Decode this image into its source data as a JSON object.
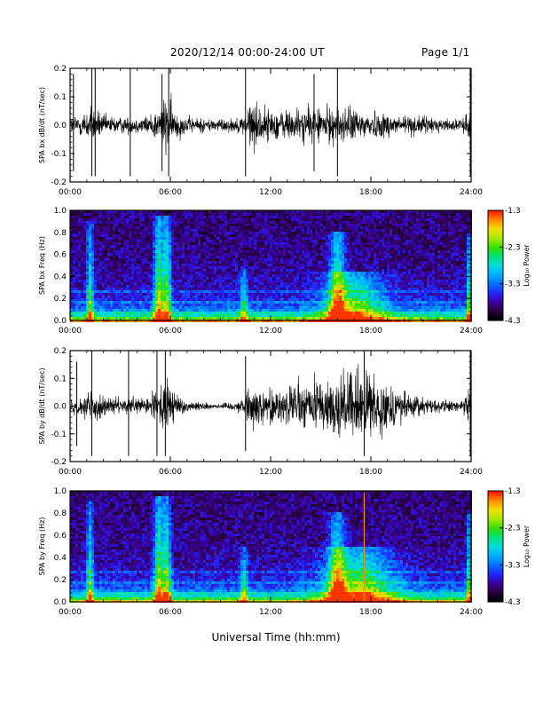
{
  "header": {
    "title": "2020/12/14  00:00-24:00 UT",
    "page": "Page 1/1"
  },
  "xaxis_title": "Universal Time (hh:mm)",
  "colors": {
    "background": "#ffffff",
    "trace": "#000000",
    "colormap": [
      "#000000",
      "#2a0040",
      "#3a00a8",
      "#1f2bff",
      "#0077ff",
      "#00b0ff",
      "#00dede",
      "#00e07a",
      "#35e000",
      "#a8e800",
      "#f0e000",
      "#ff8c00",
      "#ff1a00"
    ]
  },
  "chart_data": [
    {
      "id": "bx-waveform",
      "type": "line",
      "ylabel": "SPA bx dB/dt (nT/sec)",
      "x_ticks": [
        "00:00",
        "06:00",
        "12:00",
        "18:00",
        "24:00"
      ],
      "xlim": [
        0,
        24
      ],
      "ylim": [
        -0.2,
        0.2
      ],
      "y_ticks": [
        "0.2",
        "0.1",
        "0.0",
        "-0.1",
        "-0.2"
      ],
      "y_tick_values": [
        0.2,
        0.1,
        0.0,
        -0.1,
        -0.2
      ],
      "envelope": {
        "x": [
          0,
          0.5,
          1.0,
          1.3,
          2.0,
          3.0,
          4.5,
          5.4,
          5.8,
          6.2,
          7.0,
          8.5,
          9.5,
          10.3,
          10.8,
          12.0,
          13.5,
          15.0,
          16.5,
          17.5,
          18.5,
          19.5,
          20.5,
          21.5,
          22.5,
          23.5,
          24.0
        ],
        "amp": [
          0.05,
          0.07,
          0.09,
          0.12,
          0.06,
          0.05,
          0.05,
          0.11,
          0.19,
          0.1,
          0.05,
          0.04,
          0.04,
          0.05,
          0.15,
          0.09,
          0.1,
          0.11,
          0.11,
          0.09,
          0.08,
          0.07,
          0.06,
          0.05,
          0.04,
          0.03,
          0.12
        ]
      },
      "spikes": [
        {
          "x": 0.2,
          "amp": 0.18
        },
        {
          "x": 1.3,
          "amp": 0.2
        },
        {
          "x": 1.5,
          "amp": 0.2
        },
        {
          "x": 3.6,
          "amp": 0.2
        },
        {
          "x": 5.5,
          "amp": 0.18
        },
        {
          "x": 5.9,
          "amp": 0.2
        },
        {
          "x": 10.5,
          "amp": 0.2
        },
        {
          "x": 14.6,
          "amp": 0.18
        },
        {
          "x": 16.0,
          "amp": 0.2
        },
        {
          "x": 23.95,
          "amp": 0.2
        }
      ]
    },
    {
      "id": "bx-spectrogram",
      "type": "heatmap",
      "ylabel": "SPA bx Freq (Hz)",
      "x_ticks": [
        "00:00",
        "06:00",
        "12:00",
        "18:00",
        "24:00"
      ],
      "xlim": [
        0,
        24
      ],
      "ylim": [
        0,
        1.0
      ],
      "y_ticks": [
        "1.0",
        "0.8",
        "0.6",
        "0.4",
        "0.2",
        "0.0"
      ],
      "y_tick_values": [
        1.0,
        0.8,
        0.6,
        0.4,
        0.2,
        0.0
      ],
      "colorbar": {
        "label": "Log₁₀ Power",
        "ticks": [
          "-1.3",
          "-2.3",
          "-3.3",
          "-4.3"
        ],
        "tick_values": [
          -1.3,
          -2.3,
          -3.3,
          -4.3
        ],
        "range": [
          -4.3,
          -1.3
        ]
      },
      "bursts": [
        {
          "center": 1.2,
          "width": 0.25,
          "maxf": 0.9,
          "strength": 0.45
        },
        {
          "center": 5.3,
          "width": 0.35,
          "maxf": 0.95,
          "strength": 0.6
        },
        {
          "center": 5.8,
          "width": 0.3,
          "maxf": 0.95,
          "strength": 0.55
        },
        {
          "center": 10.4,
          "width": 0.3,
          "maxf": 0.5,
          "strength": 0.35
        },
        {
          "center": 16.0,
          "width": 0.6,
          "maxf": 0.8,
          "strength": 0.55
        },
        {
          "center": 17.0,
          "width": 2.2,
          "maxf": 0.45,
          "strength": 0.5
        },
        {
          "center": 23.9,
          "width": 0.2,
          "maxf": 0.8,
          "strength": 0.5
        }
      ],
      "harmonic_bands": [
        0.07,
        0.17,
        0.27
      ],
      "line_events": []
    },
    {
      "id": "by-waveform",
      "type": "line",
      "ylabel": "SPA by dB/dt (nT/sec)",
      "x_ticks": [
        "00:00",
        "06:00",
        "12:00",
        "18:00",
        "24:00"
      ],
      "xlim": [
        0,
        24
      ],
      "ylim": [
        -0.2,
        0.2
      ],
      "y_ticks": [
        "0.2",
        "0.1",
        "0.0",
        "-0.1",
        "-0.2"
      ],
      "y_tick_values": [
        0.2,
        0.1,
        0.0,
        -0.1,
        -0.2
      ],
      "envelope": {
        "x": [
          0,
          0.5,
          1.0,
          1.3,
          2.0,
          3.0,
          4.5,
          5.4,
          5.8,
          6.3,
          7.0,
          8.5,
          9.5,
          10.2,
          10.8,
          12.0,
          13.5,
          15.0,
          16.5,
          17.5,
          18.5,
          19.5,
          20.5,
          21.5,
          22.5,
          23.5,
          24.0
        ],
        "amp": [
          0.04,
          0.06,
          0.08,
          0.12,
          0.06,
          0.05,
          0.05,
          0.12,
          0.18,
          0.09,
          0.03,
          0.02,
          0.02,
          0.04,
          0.12,
          0.1,
          0.14,
          0.18,
          0.2,
          0.2,
          0.17,
          0.12,
          0.07,
          0.05,
          0.04,
          0.03,
          0.14
        ]
      },
      "spikes": [
        {
          "x": 0.4,
          "amp": 0.16
        },
        {
          "x": 1.3,
          "amp": 0.2
        },
        {
          "x": 3.5,
          "amp": 0.2
        },
        {
          "x": 5.2,
          "amp": 0.2
        },
        {
          "x": 5.7,
          "amp": 0.2
        },
        {
          "x": 10.5,
          "amp": 0.18
        },
        {
          "x": 17.6,
          "amp": 0.2
        },
        {
          "x": 23.95,
          "amp": 0.2
        }
      ]
    },
    {
      "id": "by-spectrogram",
      "type": "heatmap",
      "ylabel": "SPA by Freq (Hz)",
      "x_ticks": [
        "00:00",
        "06:00",
        "12:00",
        "18:00",
        "24:00"
      ],
      "xlim": [
        0,
        24
      ],
      "ylim": [
        0,
        1.0
      ],
      "y_ticks": [
        "1.0",
        "0.8",
        "0.6",
        "0.4",
        "0.2",
        "0.0"
      ],
      "y_tick_values": [
        1.0,
        0.8,
        0.6,
        0.4,
        0.2,
        0.0
      ],
      "colorbar": {
        "label": "Log₁₀ Power",
        "ticks": [
          "-1.3",
          "-2.3",
          "-3.3",
          "-4.3"
        ],
        "tick_values": [
          -1.3,
          -2.3,
          -3.3,
          -4.3
        ],
        "range": [
          -4.3,
          -1.3
        ]
      },
      "bursts": [
        {
          "center": 1.2,
          "width": 0.25,
          "maxf": 0.9,
          "strength": 0.45
        },
        {
          "center": 5.3,
          "width": 0.35,
          "maxf": 0.95,
          "strength": 0.6
        },
        {
          "center": 5.8,
          "width": 0.3,
          "maxf": 0.95,
          "strength": 0.55
        },
        {
          "center": 10.4,
          "width": 0.3,
          "maxf": 0.5,
          "strength": 0.35
        },
        {
          "center": 16.0,
          "width": 0.6,
          "maxf": 0.8,
          "strength": 0.55
        },
        {
          "center": 17.3,
          "width": 2.6,
          "maxf": 0.5,
          "strength": 0.55
        },
        {
          "center": 23.9,
          "width": 0.2,
          "maxf": 0.8,
          "strength": 0.5
        }
      ],
      "harmonic_bands": [
        0.07,
        0.17,
        0.27
      ],
      "line_events": [
        {
          "x": 17.6,
          "color": "#ff8c00"
        }
      ]
    }
  ]
}
